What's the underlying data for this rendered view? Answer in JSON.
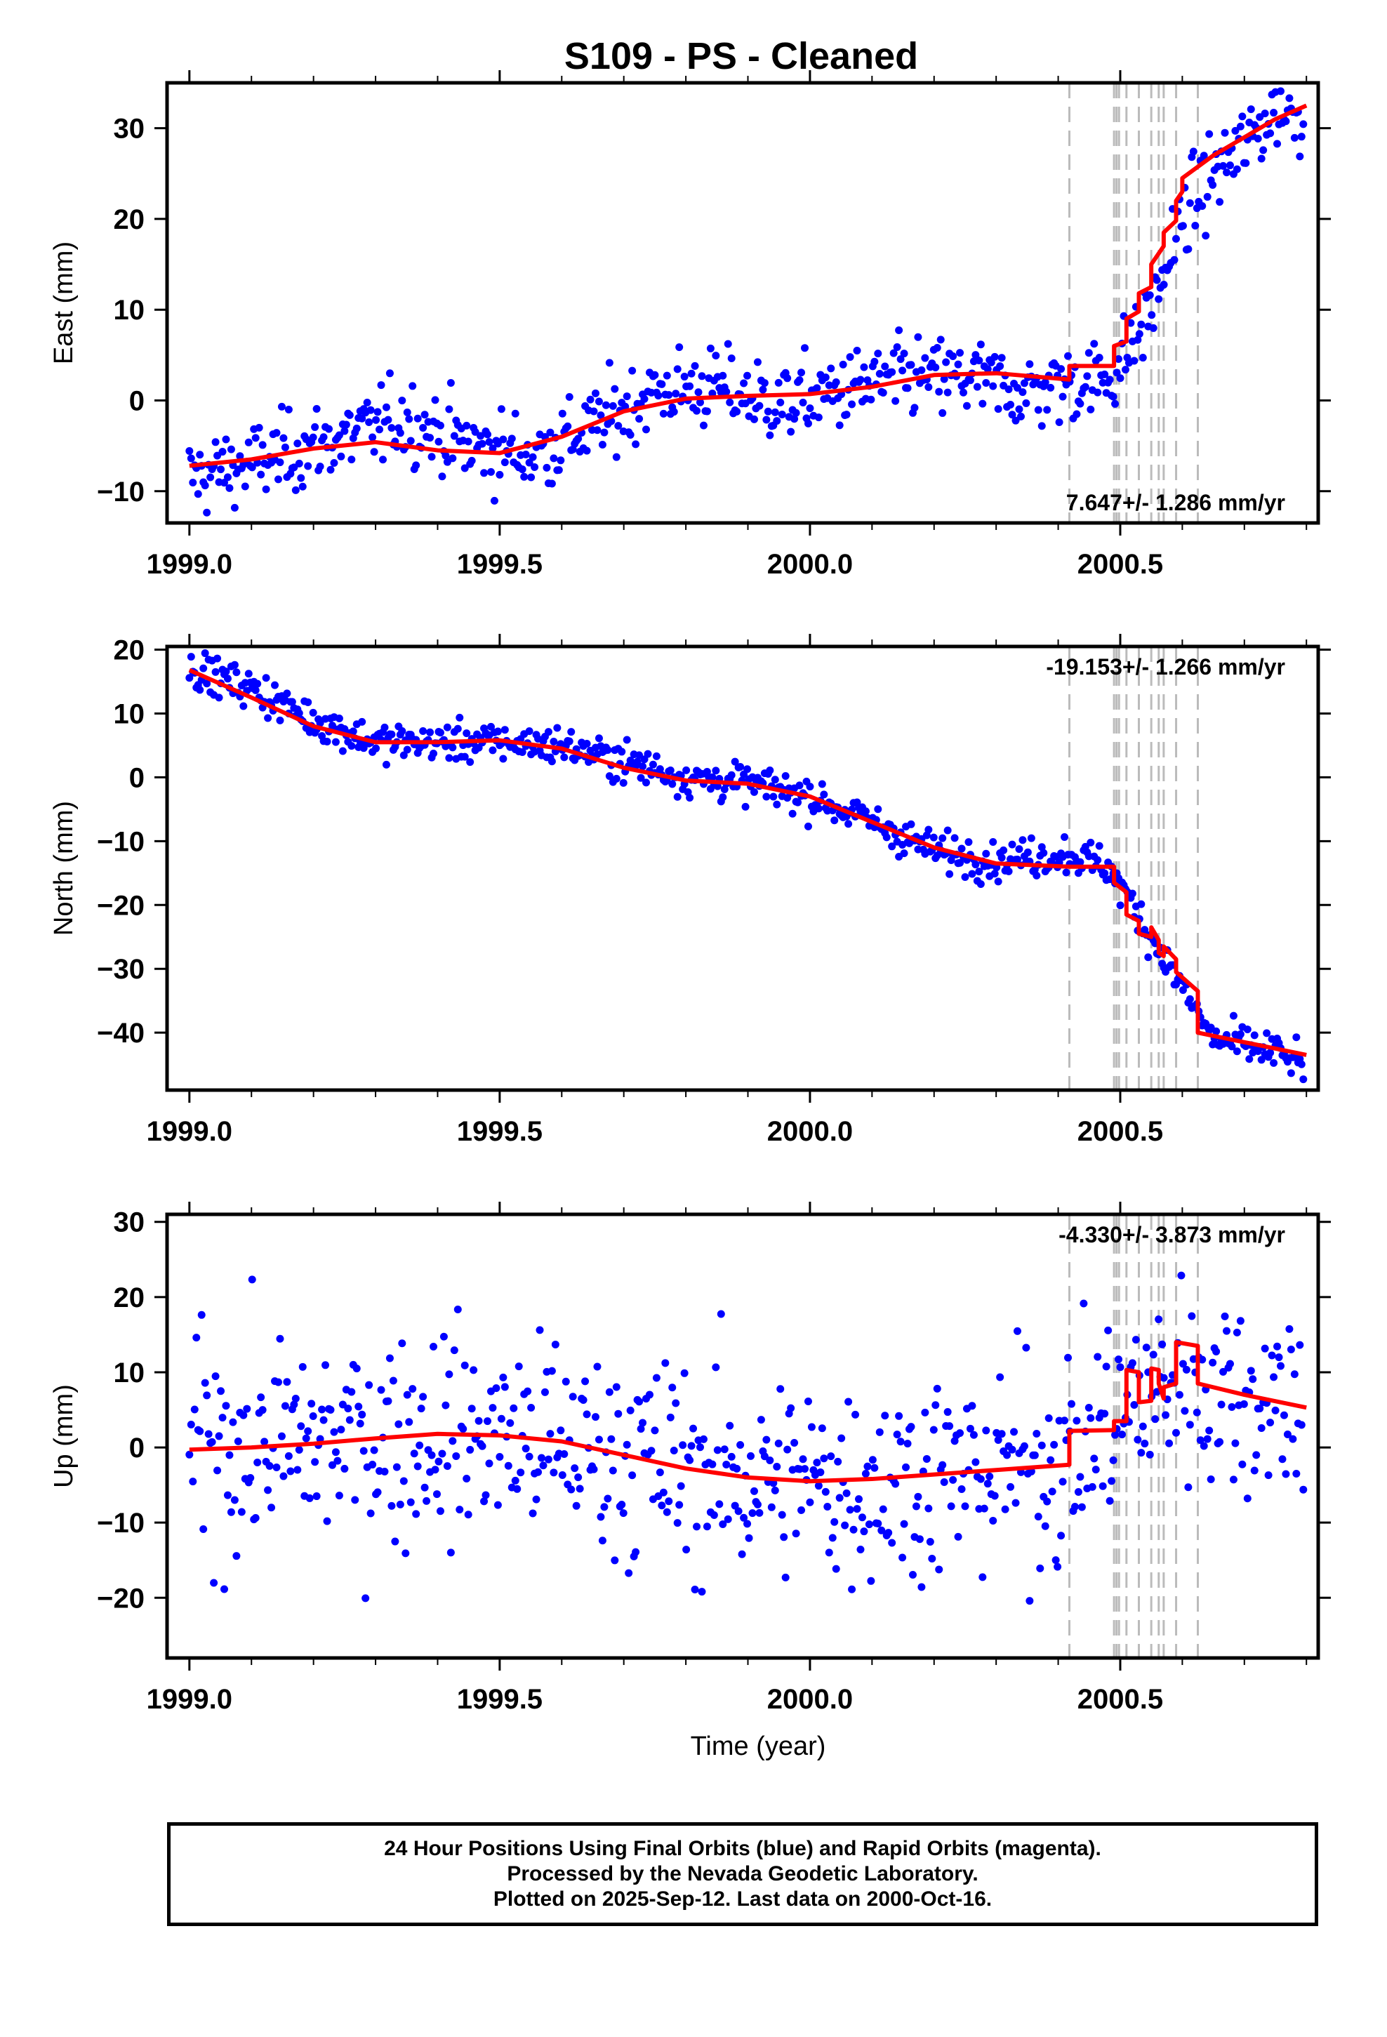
{
  "chart_data": [
    {
      "type": "scatter",
      "title": "S109  - PS - Cleaned",
      "xlabel": "",
      "ylabel": "East (mm)",
      "xlim": [
        1998.964,
        2000.819
      ],
      "ylim": [
        -13.5,
        35
      ],
      "xticks": [
        1999.0,
        1999.5,
        2000.0,
        2000.5
      ],
      "xtick_labels": [
        "1999.0",
        "1999.5",
        "2000.0",
        "2000.5"
      ],
      "yticks": [
        -10,
        0,
        10,
        20,
        30
      ],
      "ytick_labels": [
        "−10",
        "0",
        "10",
        "20",
        "30"
      ],
      "rate_label": "7.647+/- 1.286 mm/yr",
      "grid": false,
      "series": [
        {
          "color": "#0000ff",
          "marker": "dot",
          "anchors": [
            [
              1999.0,
              -8.5
            ],
            [
              1999.1,
              -7.0
            ],
            [
              1999.25,
              -4.0
            ],
            [
              1999.35,
              -2.0
            ],
            [
              1999.45,
              -5.0
            ],
            [
              1999.55,
              -6.0
            ],
            [
              1999.65,
              -3.0
            ],
            [
              1999.75,
              1.0
            ],
            [
              1999.85,
              1.5
            ],
            [
              1999.95,
              -0.5
            ],
            [
              2000.05,
              1.0
            ],
            [
              2000.15,
              2.5
            ],
            [
              2000.25,
              2.5
            ],
            [
              2000.35,
              1.0
            ],
            [
              2000.42,
              2.0
            ],
            [
              2000.48,
              2.5
            ],
            [
              2000.5,
              4.0
            ],
            [
              2000.55,
              10.0
            ],
            [
              2000.6,
              20.0
            ],
            [
              2000.65,
              25.0
            ],
            [
              2000.7,
              28.0
            ],
            [
              2000.75,
              32.0
            ],
            [
              2000.8,
              31.5
            ]
          ],
          "noise": 2.2
        },
        {
          "color": "#ff0000",
          "type": "line",
          "x": [
            1999.0,
            1999.1,
            1999.2,
            1999.3,
            1999.4,
            1999.5,
            1999.6,
            1999.7,
            1999.8,
            1999.9,
            2000.0,
            2000.1,
            2000.2,
            2000.3,
            2000.418,
            2000.418,
            2000.49,
            2000.49,
            2000.51,
            2000.51,
            2000.53,
            2000.53,
            2000.55,
            2000.55,
            2000.57,
            2000.57,
            2000.59,
            2000.59,
            2000.6,
            2000.6,
            2000.65,
            2000.7,
            2000.75,
            2000.8
          ],
          "y": [
            -7.2,
            -6.5,
            -5.3,
            -4.6,
            -5.5,
            -5.8,
            -4.0,
            -1.2,
            0.2,
            0.5,
            0.7,
            1.5,
            2.8,
            3.0,
            2.3,
            3.8,
            3.8,
            6.0,
            6.5,
            9.0,
            9.8,
            11.8,
            12.5,
            15.0,
            17.0,
            18.5,
            19.8,
            22.0,
            23.0,
            24.5,
            27.0,
            29.0,
            31.0,
            32.5
          ]
        }
      ],
      "event_lines": [
        2000.418,
        2000.49,
        2000.494,
        2000.498,
        2000.51,
        2000.53,
        2000.55,
        2000.562,
        2000.57,
        2000.59,
        2000.625
      ]
    },
    {
      "type": "scatter",
      "xlabel": "",
      "ylabel": "North (mm)",
      "xlim": [
        1998.964,
        2000.819
      ],
      "ylim": [
        -49,
        20.5
      ],
      "xticks": [
        1999.0,
        1999.5,
        2000.0,
        2000.5
      ],
      "xtick_labels": [
        "1999.0",
        "1999.5",
        "2000.0",
        "2000.5"
      ],
      "yticks": [
        -40,
        -30,
        -20,
        -10,
        0,
        10,
        20
      ],
      "ytick_labels": [
        "−40",
        "−30",
        "−20",
        "−10",
        "0",
        "10",
        "20"
      ],
      "rate_label": "-19.153+/- 1.266 mm/yr",
      "grid": false,
      "series": [
        {
          "color": "#0000ff",
          "marker": "dot",
          "anchors": [
            [
              1999.0,
              17.0
            ],
            [
              1999.1,
              14.0
            ],
            [
              1999.2,
              9.0
            ],
            [
              1999.3,
              5.5
            ],
            [
              1999.4,
              5.5
            ],
            [
              1999.5,
              5.5
            ],
            [
              1999.6,
              5.0
            ],
            [
              1999.7,
              2.5
            ],
            [
              1999.8,
              0.0
            ],
            [
              1999.9,
              -1.0
            ],
            [
              2000.0,
              -3.0
            ],
            [
              2000.1,
              -7.0
            ],
            [
              2000.2,
              -11.5
            ],
            [
              2000.3,
              -13.0
            ],
            [
              2000.418,
              -12.0
            ],
            [
              2000.48,
              -14.0
            ],
            [
              2000.52,
              -20.0
            ],
            [
              2000.55,
              -25.0
            ],
            [
              2000.6,
              -33.0
            ],
            [
              2000.65,
              -41.0
            ],
            [
              2000.7,
              -42.0
            ],
            [
              2000.75,
              -43.0
            ],
            [
              2000.8,
              -45.5
            ]
          ],
          "noise": 1.5
        },
        {
          "color": "#ff0000",
          "type": "line",
          "x": [
            1999.0,
            1999.1,
            1999.2,
            1999.3,
            1999.4,
            1999.5,
            1999.6,
            1999.7,
            1999.8,
            1999.9,
            2000.0,
            2000.1,
            2000.2,
            2000.3,
            2000.418,
            2000.49,
            2000.49,
            2000.51,
            2000.51,
            2000.53,
            2000.53,
            2000.55,
            2000.55,
            2000.562,
            2000.562,
            2000.57,
            2000.57,
            2000.59,
            2000.59,
            2000.625,
            2000.625,
            2000.7,
            2000.8
          ],
          "y": [
            16.8,
            12.5,
            8.0,
            5.5,
            5.5,
            5.8,
            4.5,
            1.5,
            -0.5,
            -1.0,
            -3.0,
            -7.0,
            -11.0,
            -13.5,
            -14.0,
            -14.0,
            -16.5,
            -18.0,
            -21.5,
            -22.5,
            -24.5,
            -25.0,
            -23.5,
            -25.5,
            -27.5,
            -28.0,
            -26.5,
            -28.5,
            -30.5,
            -33.5,
            -40.0,
            -41.5,
            -43.5
          ]
        }
      ],
      "event_lines": [
        2000.418,
        2000.49,
        2000.494,
        2000.498,
        2000.51,
        2000.53,
        2000.55,
        2000.562,
        2000.57,
        2000.59,
        2000.625
      ]
    },
    {
      "type": "scatter",
      "xlabel": "Time (year)",
      "ylabel": "Up (mm)",
      "xlim": [
        1998.964,
        2000.819
      ],
      "ylim": [
        -28,
        31
      ],
      "xticks": [
        1999.0,
        1999.5,
        2000.0,
        2000.5
      ],
      "xtick_labels": [
        "1999.0",
        "1999.5",
        "2000.0",
        "2000.5"
      ],
      "yticks": [
        -20,
        -10,
        0,
        10,
        20,
        30
      ],
      "ytick_labels": [
        "−20",
        "−10",
        "0",
        "10",
        "20",
        "30"
      ],
      "rate_label": "-4.330+/- 3.873 mm/yr",
      "grid": false,
      "series": [
        {
          "color": "#0000ff",
          "marker": "dot",
          "anchors": [
            [
              1999.0,
              0.0
            ],
            [
              1999.2,
              0.5
            ],
            [
              1999.4,
              2.0
            ],
            [
              1999.5,
              1.5
            ],
            [
              1999.6,
              0.5
            ],
            [
              1999.7,
              -1.0
            ],
            [
              1999.8,
              -3.0
            ],
            [
              1999.9,
              -4.0
            ],
            [
              2000.0,
              -4.5
            ],
            [
              2000.1,
              -4.5
            ],
            [
              2000.2,
              -4.0
            ],
            [
              2000.3,
              -3.0
            ],
            [
              2000.418,
              -1.0
            ],
            [
              2000.48,
              3.0
            ],
            [
              2000.55,
              7.0
            ],
            [
              2000.6,
              10.0
            ],
            [
              2000.65,
              8.0
            ],
            [
              2000.7,
              7.0
            ],
            [
              2000.8,
              6.0
            ]
          ],
          "noise": 7.0
        },
        {
          "color": "#ff0000",
          "type": "line",
          "x": [
            1999.0,
            1999.1,
            1999.2,
            1999.3,
            1999.4,
            1999.5,
            1999.6,
            1999.7,
            1999.8,
            1999.9,
            2000.0,
            2000.1,
            2000.2,
            2000.3,
            2000.418,
            2000.418,
            2000.49,
            2000.49,
            2000.51,
            2000.51,
            2000.53,
            2000.53,
            2000.55,
            2000.55,
            2000.562,
            2000.562,
            2000.57,
            2000.57,
            2000.59,
            2000.59,
            2000.625,
            2000.625,
            2000.7,
            2000.8
          ],
          "y": [
            -0.3,
            0.0,
            0.5,
            1.2,
            1.8,
            1.6,
            0.8,
            -1.0,
            -2.8,
            -4.0,
            -4.5,
            -4.2,
            -3.6,
            -3.0,
            -2.3,
            2.2,
            2.3,
            3.5,
            3.5,
            10.3,
            10.0,
            6.0,
            6.2,
            10.5,
            10.3,
            8.5,
            6.5,
            8.0,
            8.5,
            14.0,
            13.5,
            8.5,
            7.0,
            5.3
          ]
        }
      ],
      "event_lines": [
        2000.418,
        2000.49,
        2000.494,
        2000.498,
        2000.51,
        2000.53,
        2000.55,
        2000.562,
        2000.57,
        2000.59,
        2000.625
      ]
    }
  ],
  "caption": {
    "line1": "24 Hour Positions Using Final Orbits (blue) and Rapid Orbits (magenta).",
    "line2": "Processed by the Nevada Geodetic Laboratory.",
    "line3": "Plotted on 2025-Sep-12. Last data on 2000-Oct-16."
  }
}
